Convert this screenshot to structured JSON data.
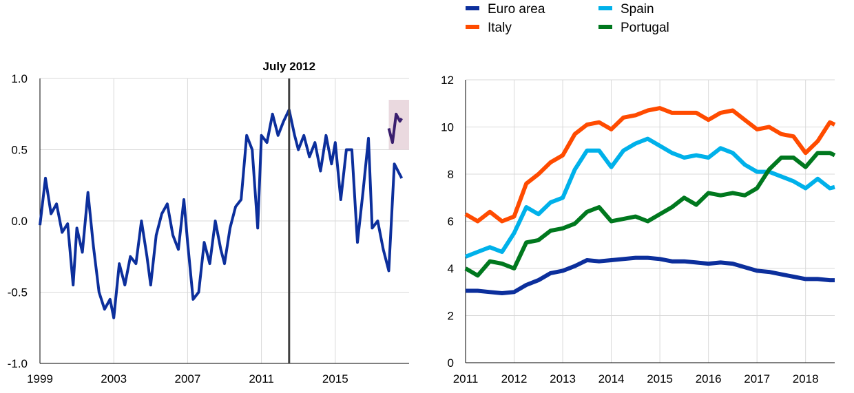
{
  "chart_data": [
    {
      "type": "line",
      "xlim": [
        1999,
        2019
      ],
      "ylim": [
        -1.0,
        1.0
      ],
      "x_ticks": [
        "1999",
        "2003",
        "2007",
        "2011",
        "2015"
      ],
      "y_ticks": [
        "1.0",
        "0.5",
        "0.0",
        "-0.5",
        "-1.0"
      ],
      "grid": true,
      "annotation": {
        "label": "July 2012",
        "x": 2012.5
      },
      "highlight": {
        "x": [
          2017.9,
          2019.0
        ],
        "y": [
          0.5,
          0.85
        ],
        "color": "#ead9df"
      },
      "series": [
        {
          "color": "#0c2f9c",
          "x": [
            1999.0,
            1999.3,
            1999.6,
            1999.9,
            2000.2,
            2000.5,
            2000.8,
            2001.0,
            2001.3,
            2001.6,
            2001.9,
            2002.2,
            2002.5,
            2002.8,
            2003.0,
            2003.3,
            2003.6,
            2003.9,
            2004.2,
            2004.5,
            2004.8,
            2005.0,
            2005.3,
            2005.6,
            2005.9,
            2006.2,
            2006.5,
            2006.8,
            2007.0,
            2007.3,
            2007.6,
            2007.9,
            2008.2,
            2008.5,
            2008.8,
            2009.0,
            2009.3,
            2009.6,
            2009.9,
            2010.2,
            2010.5,
            2010.8,
            2011.0,
            2011.3,
            2011.6,
            2011.9,
            2012.2,
            2012.5,
            2012.8,
            2013.0,
            2013.3,
            2013.6,
            2013.9,
            2014.2,
            2014.5,
            2014.8,
            2015.0,
            2015.3,
            2015.6,
            2015.9,
            2016.2,
            2016.5,
            2016.8,
            2017.0,
            2017.3,
            2017.6,
            2017.9,
            2018.2,
            2018.4,
            2018.6
          ],
          "values": [
            -0.03,
            0.3,
            0.05,
            0.12,
            -0.08,
            -0.02,
            -0.45,
            -0.05,
            -0.22,
            0.2,
            -0.18,
            -0.5,
            -0.62,
            -0.55,
            -0.68,
            -0.3,
            -0.45,
            -0.25,
            -0.3,
            0.0,
            -0.25,
            -0.45,
            -0.1,
            0.05,
            0.12,
            -0.1,
            -0.2,
            0.15,
            -0.15,
            -0.55,
            -0.5,
            -0.15,
            -0.3,
            0.0,
            -0.2,
            -0.3,
            -0.05,
            0.1,
            0.15,
            0.6,
            0.5,
            -0.05,
            0.6,
            0.55,
            0.75,
            0.6,
            0.7,
            0.78,
            0.6,
            0.5,
            0.6,
            0.45,
            0.55,
            0.35,
            0.6,
            0.4,
            0.55,
            0.15,
            0.5,
            0.5,
            -0.15,
            0.2,
            0.58,
            -0.05,
            0.0,
            -0.2,
            -0.35,
            0.4,
            0.35,
            0.3
          ]
        },
        {
          "color": "#3a1f6e",
          "x": [
            2017.9,
            2018.1,
            2018.3,
            2018.5,
            2018.6
          ],
          "values": [
            0.65,
            0.55,
            0.75,
            0.7,
            0.72
          ]
        }
      ]
    },
    {
      "type": "line",
      "xlim": [
        2011,
        2018.6
      ],
      "ylim": [
        0,
        12
      ],
      "x_ticks": [
        "2011",
        "2012",
        "2013",
        "2014",
        "2015",
        "2016",
        "2017",
        "2018"
      ],
      "y_ticks": [
        "12",
        "10",
        "8",
        "6",
        "4",
        "2",
        "0"
      ],
      "grid": true,
      "legend_position": "top",
      "x": [
        2011.0,
        2011.25,
        2011.5,
        2011.75,
        2012.0,
        2012.25,
        2012.5,
        2012.75,
        2013.0,
        2013.25,
        2013.5,
        2013.75,
        2014.0,
        2014.25,
        2014.5,
        2014.75,
        2015.0,
        2015.25,
        2015.5,
        2015.75,
        2016.0,
        2016.25,
        2016.5,
        2016.75,
        2017.0,
        2017.25,
        2017.5,
        2017.75,
        2018.0,
        2018.25,
        2018.5,
        2018.6
      ],
      "series": [
        {
          "name": "Euro area",
          "color": "#0c2f9c",
          "values": [
            3.05,
            3.05,
            3.0,
            2.95,
            3.0,
            3.3,
            3.5,
            3.8,
            3.9,
            4.1,
            4.35,
            4.3,
            4.35,
            4.4,
            4.45,
            4.45,
            4.4,
            4.3,
            4.3,
            4.25,
            4.2,
            4.25,
            4.2,
            4.05,
            3.9,
            3.85,
            3.75,
            3.65,
            3.55,
            3.55,
            3.5,
            3.5
          ]
        },
        {
          "name": "Italy",
          "color": "#ff4b00",
          "values": [
            6.3,
            6.0,
            6.4,
            6.0,
            6.2,
            7.6,
            8.0,
            8.5,
            8.8,
            9.7,
            10.1,
            10.2,
            9.9,
            10.4,
            10.5,
            10.7,
            10.8,
            10.6,
            10.6,
            10.6,
            10.3,
            10.6,
            10.7,
            10.3,
            9.9,
            10.0,
            9.7,
            9.6,
            8.9,
            9.4,
            10.2,
            10.1
          ]
        },
        {
          "name": "Spain",
          "color": "#00b1ea",
          "values": [
            4.5,
            4.7,
            4.9,
            4.7,
            5.5,
            6.6,
            6.3,
            6.8,
            7.0,
            8.2,
            9.0,
            9.0,
            8.3,
            9.0,
            9.3,
            9.5,
            9.2,
            8.9,
            8.7,
            8.8,
            8.7,
            9.1,
            8.9,
            8.4,
            8.1,
            8.1,
            7.9,
            7.7,
            7.4,
            7.8,
            7.4,
            7.45
          ]
        },
        {
          "name": "Portugal",
          "color": "#00781e",
          "values": [
            4.0,
            3.7,
            4.3,
            4.2,
            4.0,
            5.1,
            5.2,
            5.6,
            5.7,
            5.9,
            6.4,
            6.6,
            6.0,
            6.1,
            6.2,
            6.0,
            6.3,
            6.6,
            7.0,
            6.7,
            7.2,
            7.1,
            7.2,
            7.1,
            7.4,
            8.2,
            8.7,
            8.7,
            8.3,
            8.9,
            8.9,
            8.8
          ]
        }
      ]
    }
  ]
}
